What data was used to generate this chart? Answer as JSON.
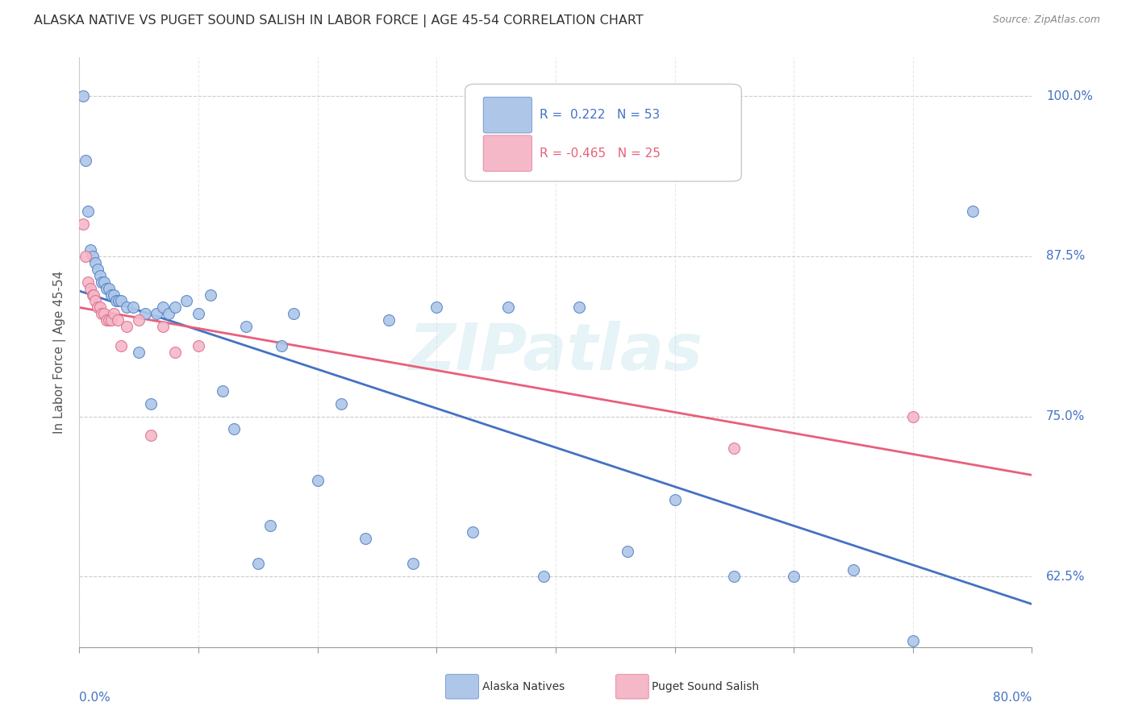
{
  "title": "ALASKA NATIVE VS PUGET SOUND SALISH IN LABOR FORCE | AGE 45-54 CORRELATION CHART",
  "source": "Source: ZipAtlas.com",
  "ylabel": "In Labor Force | Age 45-54",
  "legend_label_1": "Alaska Natives",
  "legend_label_2": "Puget Sound Salish",
  "r1": 0.222,
  "n1": 53,
  "r2": -0.465,
  "n2": 25,
  "color_blue_fill": "#aec6e8",
  "color_pink_fill": "#f4b8c8",
  "color_blue_edge": "#5585c5",
  "color_pink_edge": "#e07090",
  "color_blue_line": "#4472c4",
  "color_pink_line": "#e8607a",
  "color_blue_text": "#4472c4",
  "color_pink_text": "#e8607a",
  "xmin": 0.0,
  "xmax": 80.0,
  "ymin": 57.0,
  "ymax": 103.0,
  "yticks": [
    62.5,
    75.0,
    87.5,
    100.0
  ],
  "blue_x": [
    0.3,
    0.5,
    0.7,
    0.9,
    1.1,
    1.3,
    1.5,
    1.7,
    1.9,
    2.1,
    2.3,
    2.5,
    2.7,
    2.9,
    3.1,
    3.3,
    3.5,
    4.0,
    4.5,
    5.0,
    5.5,
    6.0,
    6.5,
    7.0,
    7.5,
    8.0,
    9.0,
    10.0,
    11.0,
    12.0,
    13.0,
    14.0,
    15.0,
    16.0,
    17.0,
    18.0,
    20.0,
    22.0,
    24.0,
    26.0,
    28.0,
    30.0,
    33.0,
    36.0,
    39.0,
    42.0,
    46.0,
    50.0,
    55.0,
    60.0,
    65.0,
    70.0,
    75.0
  ],
  "blue_y": [
    100.0,
    95.0,
    91.0,
    88.0,
    87.5,
    87.0,
    86.5,
    86.0,
    85.5,
    85.5,
    85.0,
    85.0,
    84.5,
    84.5,
    84.0,
    84.0,
    84.0,
    83.5,
    83.5,
    80.0,
    83.0,
    76.0,
    83.0,
    83.5,
    83.0,
    83.5,
    84.0,
    83.0,
    84.5,
    77.0,
    74.0,
    82.0,
    63.5,
    66.5,
    80.5,
    83.0,
    70.0,
    76.0,
    65.5,
    82.5,
    63.5,
    83.5,
    66.0,
    83.5,
    62.5,
    83.5,
    64.5,
    68.5,
    62.5,
    62.5,
    63.0,
    57.5,
    91.0
  ],
  "pink_x": [
    0.3,
    0.5,
    0.7,
    0.9,
    1.1,
    1.2,
    1.3,
    1.5,
    1.7,
    1.9,
    2.1,
    2.3,
    2.5,
    2.7,
    2.9,
    3.2,
    3.5,
    4.0,
    5.0,
    6.0,
    7.0,
    8.0,
    10.0,
    55.0,
    70.0
  ],
  "pink_y": [
    90.0,
    87.5,
    85.5,
    85.0,
    84.5,
    84.5,
    84.0,
    83.5,
    83.5,
    83.0,
    83.0,
    82.5,
    82.5,
    82.5,
    83.0,
    82.5,
    80.5,
    82.0,
    82.5,
    73.5,
    82.0,
    80.0,
    80.5,
    72.5,
    75.0
  ]
}
